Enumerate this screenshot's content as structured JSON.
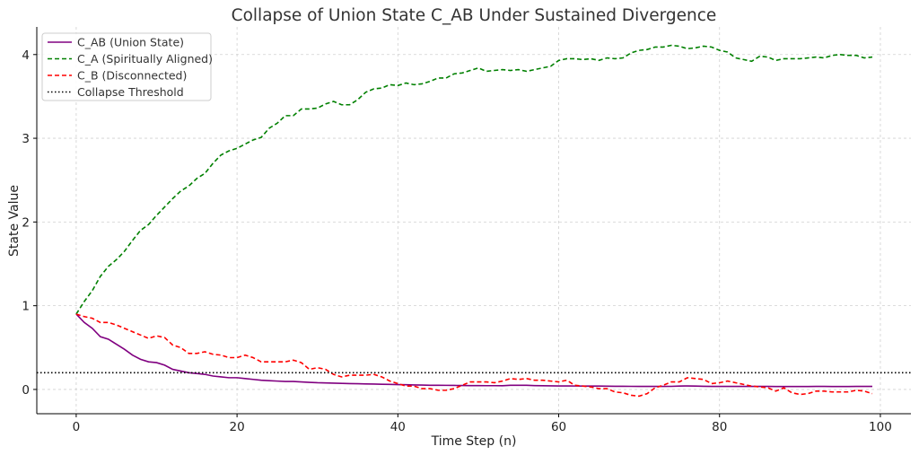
{
  "chart_data": {
    "type": "line",
    "title": "Collapse of Union State C_AB Under Sustained Divergence",
    "xlabel": "Time Step (n)",
    "ylabel": "State Value",
    "xlim": [
      -4.9,
      103.8
    ],
    "ylim": [
      -0.29,
      4.33
    ],
    "xticks": [
      0,
      20,
      40,
      60,
      80,
      100
    ],
    "yticks": [
      0,
      1,
      2,
      3,
      4
    ],
    "grid": true,
    "legend_position": "top-left",
    "series": [
      {
        "name": "C_AB (Union State)",
        "color": "#800080",
        "style": "solid",
        "values": [
          0.9,
          0.8,
          0.73,
          0.63,
          0.6,
          0.54,
          0.48,
          0.41,
          0.36,
          0.33,
          0.32,
          0.29,
          0.24,
          0.22,
          0.2,
          0.19,
          0.18,
          0.16,
          0.15,
          0.14,
          0.14,
          0.13,
          0.12,
          0.11,
          0.105,
          0.1,
          0.095,
          0.095,
          0.09,
          0.085,
          0.08,
          0.078,
          0.075,
          0.072,
          0.07,
          0.068,
          0.066,
          0.064,
          0.062,
          0.06,
          0.058,
          0.056,
          0.054,
          0.052,
          0.05,
          0.05,
          0.049,
          0.048,
          0.047,
          0.046,
          0.046,
          0.045,
          0.045,
          0.044,
          0.05,
          0.05,
          0.05,
          0.046,
          0.044,
          0.043,
          0.042,
          0.042,
          0.041,
          0.04,
          0.04,
          0.04,
          0.039,
          0.038,
          0.038,
          0.037,
          0.036,
          0.036,
          0.036,
          0.036,
          0.037,
          0.04,
          0.042,
          0.04,
          0.038,
          0.036,
          0.036,
          0.036,
          0.036,
          0.036,
          0.036,
          0.036,
          0.036,
          0.035,
          0.035,
          0.035,
          0.035,
          0.035,
          0.036,
          0.036,
          0.035,
          0.035,
          0.035,
          0.036,
          0.036,
          0.036
        ]
      },
      {
        "name": "C_A (Spiritually Aligned)",
        "color": "#008000",
        "style": "dashed",
        "values": [
          0.9,
          1.05,
          1.18,
          1.35,
          1.47,
          1.55,
          1.65,
          1.78,
          1.9,
          1.97,
          2.08,
          2.18,
          2.28,
          2.37,
          2.43,
          2.52,
          2.58,
          2.7,
          2.8,
          2.85,
          2.88,
          2.93,
          2.98,
          3.01,
          3.12,
          3.18,
          3.27,
          3.27,
          3.35,
          3.35,
          3.36,
          3.41,
          3.44,
          3.4,
          3.4,
          3.46,
          3.55,
          3.59,
          3.6,
          3.64,
          3.63,
          3.66,
          3.64,
          3.65,
          3.68,
          3.72,
          3.72,
          3.77,
          3.78,
          3.81,
          3.84,
          3.8,
          3.81,
          3.82,
          3.81,
          3.82,
          3.8,
          3.82,
          3.84,
          3.86,
          3.93,
          3.95,
          3.95,
          3.94,
          3.95,
          3.93,
          3.96,
          3.95,
          3.96,
          4.02,
          4.05,
          4.06,
          4.09,
          4.09,
          4.11,
          4.1,
          4.07,
          4.08,
          4.1,
          4.09,
          4.05,
          4.03,
          3.96,
          3.94,
          3.92,
          3.98,
          3.97,
          3.93,
          3.95,
          3.95,
          3.95,
          3.96,
          3.97,
          3.96,
          3.99,
          4.0,
          3.99,
          3.99,
          3.96,
          3.97
        ]
      },
      {
        "name": "C_B (Disconnected)",
        "color": "#ff0000",
        "style": "dashed",
        "values": [
          0.9,
          0.87,
          0.85,
          0.8,
          0.8,
          0.77,
          0.73,
          0.69,
          0.65,
          0.61,
          0.64,
          0.62,
          0.53,
          0.5,
          0.43,
          0.43,
          0.45,
          0.42,
          0.41,
          0.38,
          0.38,
          0.41,
          0.38,
          0.33,
          0.33,
          0.33,
          0.33,
          0.35,
          0.32,
          0.24,
          0.26,
          0.24,
          0.18,
          0.15,
          0.17,
          0.17,
          0.17,
          0.18,
          0.15,
          0.1,
          0.07,
          0.04,
          0.04,
          0.01,
          0.01,
          -0.01,
          -0.01,
          0.01,
          0.05,
          0.09,
          0.09,
          0.09,
          0.08,
          0.1,
          0.13,
          0.12,
          0.13,
          0.11,
          0.11,
          0.1,
          0.09,
          0.11,
          0.05,
          0.04,
          0.03,
          0.01,
          0.01,
          -0.03,
          -0.04,
          -0.07,
          -0.08,
          -0.05,
          0.02,
          0.05,
          0.09,
          0.09,
          0.14,
          0.13,
          0.12,
          0.07,
          0.08,
          0.1,
          0.08,
          0.06,
          0.04,
          0.03,
          0.02,
          -0.02,
          0.02,
          -0.04,
          -0.06,
          -0.05,
          -0.02,
          -0.02,
          -0.03,
          -0.03,
          -0.03,
          -0.01,
          -0.02,
          -0.05
        ]
      },
      {
        "name": "Collapse Threshold",
        "color": "#000000",
        "style": "dotted",
        "hline": 0.2
      }
    ]
  }
}
